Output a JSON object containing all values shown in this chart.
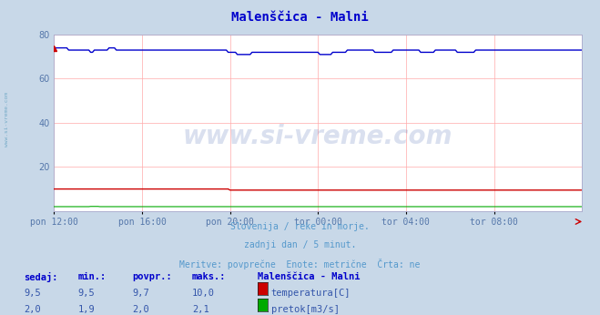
{
  "title": "Malenščica - Malni",
  "title_color": "#0000cc",
  "bg_color": "#c8d8e8",
  "plot_bg_color": "#ffffff",
  "grid_color": "#ffaaaa",
  "xlabel_color": "#5577aa",
  "watermark_text": "www.si-vreme.com",
  "watermark_color": "#3355aa",
  "watermark_alpha": 0.18,
  "subtitle_lines": [
    "Slovenija / reke in morje.",
    "zadnji dan / 5 minut.",
    "Meritve: povprečne  Enote: metrične  Črta: ne"
  ],
  "subtitle_color": "#5599cc",
  "xtick_labels": [
    "pon 12:00",
    "pon 16:00",
    "pon 20:00",
    "tor 00:00",
    "tor 04:00",
    "tor 08:00"
  ],
  "xtick_positions": [
    0,
    48,
    96,
    144,
    192,
    240
  ],
  "xlim": [
    0,
    288
  ],
  "ylim": [
    0,
    80
  ],
  "yticks": [
    20,
    40,
    60,
    80
  ],
  "n_points": 289,
  "temperatura_color": "#cc0000",
  "pretok_color": "#00aa00",
  "visina_color": "#0000cc",
  "table_header_color": "#0000cc",
  "table_value_color": "#3355aa",
  "legend_title": "Malenščica - Malni",
  "legend_title_color": "#0000cc",
  "left_label": "www.si-vreme.com",
  "left_label_color": "#5599bb",
  "arrow_color": "#cc0000"
}
